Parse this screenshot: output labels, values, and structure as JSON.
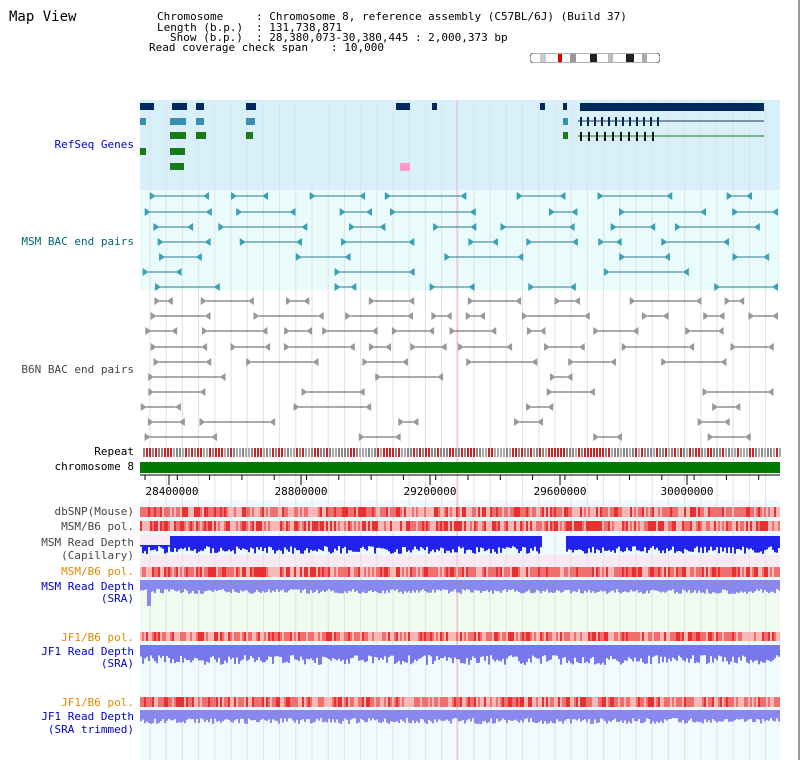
{
  "page": {
    "title": "Map View"
  },
  "info": {
    "chromosome_label": "Chromosome",
    "chromosome_value": ": Chromosome 8, reference assembly (C57BL/6J) (Build 37)",
    "length_label": "Length (b.p.)",
    "length_value": ": 131,738,871",
    "show_label": "Show (b.p.)",
    "show_value": ": 28,380,073-30,380,445 : 2,000,373 bp",
    "coverage_label": "Read coverage check span",
    "coverage_value": ": 10,000"
  },
  "tracks": {
    "refseq": "RefSeq Genes",
    "msm_bac": "MSM BAC end pairs",
    "b6n_bac": "B6N BAC end pairs",
    "repeat": "Repeat",
    "chromosome": "chromosome 8",
    "dbsnp": "dbSNP(Mouse)",
    "msm_b6_pol_1": "MSM/B6 pol.",
    "msm_depth_cap_1": "MSM Read Depth",
    "msm_depth_cap_2": "(Capillary)",
    "msm_b6_pol_2": "MSM/B6 pol.",
    "msm_depth_sra_1": "MSM Read Depth",
    "msm_depth_sra_2": "(SRA)",
    "jf1_b6_pol_1": "JF1/B6 pol.",
    "jf1_depth_sra_1": "JF1 Read Depth",
    "jf1_depth_sra_2": "(SRA)",
    "jf1_b6_pol_2": "JF1/B6 pol.",
    "jf1_depth_trim_1": "JF1 Read Depth",
    "jf1_depth_trim_2": "(SRA trimmed)"
  },
  "axis": {
    "ticks": [
      "28400000",
      "28800000",
      "29200000",
      "29600000",
      "30000000"
    ]
  },
  "colors": {
    "label_blue": "#0000cc",
    "label_teal": "#006677",
    "label_grey": "#444444",
    "label_orange": "#e08a00",
    "refseq_bg": "#d8f0fa",
    "bac_bg": "#e9fbfb",
    "dark_navy": "#002a5e",
    "gene_green": "#1a7a1a",
    "chrom_green": "#007a00",
    "depth_blue": "#2222ee",
    "depth_light": "#8888ee"
  }
}
